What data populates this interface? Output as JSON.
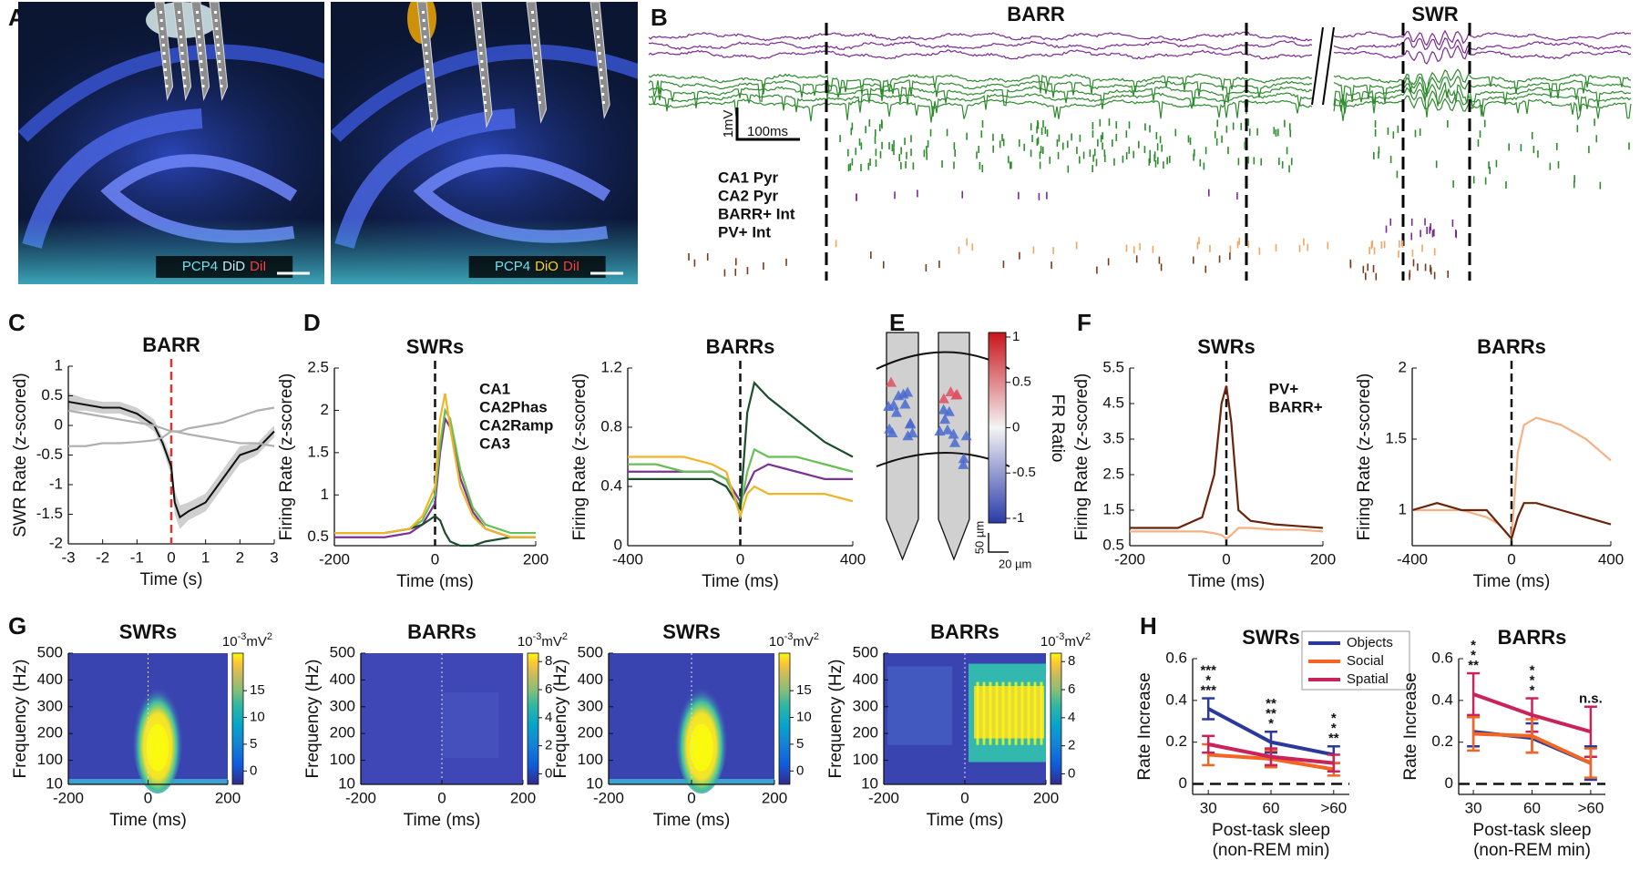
{
  "panel_labels": [
    "A",
    "B",
    "C",
    "D",
    "E",
    "F",
    "G",
    "H"
  ],
  "panel_A": {
    "stains": [
      [
        "PCP4",
        "DiD",
        "DiI"
      ],
      [
        "PCP4",
        "DiO",
        "DiI"
      ]
    ],
    "stain_colors": [
      [
        "#6fe0f0",
        "#bfeef5",
        "#ff3b3b"
      ],
      [
        "#6fe0f0",
        "#ffd21f",
        "#ff3b3b"
      ]
    ]
  },
  "panel_B": {
    "titles": [
      "BARR",
      "SWR"
    ],
    "scale_v": "1mV",
    "scale_t": "100ms",
    "cell_types": [
      "CA1 Pyr",
      "CA2 Pyr",
      "BARR+ Int",
      "PV+ Int"
    ],
    "cell_type_colors": [
      "#7b2a91",
      "#2e8b2e",
      "#f4a460",
      "#7b3a1a"
    ]
  },
  "panel_E": {
    "colorbar_label": "FR Ratio",
    "colorbar_ticks": [
      1,
      0.5,
      0,
      -0.5,
      -1
    ],
    "clim": [
      -1.05,
      1.05
    ],
    "scale_y": "50 µm",
    "scale_x": "20 µm"
  },
  "chart_data": [
    {
      "type": "line",
      "title": "BARR",
      "xlabel": "Time (s)",
      "ylabel": "SWR Rate (z-scored)",
      "x": [
        -3,
        -2.5,
        -2,
        -1.5,
        -1,
        -0.5,
        -0.25,
        0,
        0.1,
        0.25,
        0.5,
        1,
        1.5,
        2,
        2.5,
        3
      ],
      "xlim": [
        -3,
        3
      ],
      "ylim": [
        -2,
        1
      ],
      "xticks": [
        -3,
        -2,
        -1,
        0,
        1,
        2,
        3
      ],
      "yticks": [
        -2,
        -1.5,
        -1,
        -0.5,
        0,
        0.5,
        1
      ],
      "vline": 0,
      "vline_color": "#e8302a",
      "series": [
        {
          "color": "#111111",
          "values": [
            0.4,
            0.35,
            0.3,
            0.3,
            0.2,
            0,
            -0.3,
            -0.7,
            -1.3,
            -1.55,
            -1.45,
            -1.3,
            -0.9,
            -0.5,
            -0.4,
            -0.1
          ],
          "band": [
            0.15,
            0.1,
            0.1,
            0.1,
            0.1,
            0.1,
            0.1,
            0.15,
            0.2,
            0.2,
            0.15,
            0.15,
            0.15,
            0.15,
            0.1,
            0.1
          ]
        },
        {
          "color": "#b0b0b0",
          "values": [
            0.25,
            0.2,
            0.15,
            0.1,
            0.05,
            0,
            -0.05,
            -0.1,
            -0.1,
            -0.1,
            -0.05,
            0,
            0.05,
            0.15,
            0.25,
            0.3
          ]
        },
        {
          "color": "#b0b0b0",
          "values": [
            -0.35,
            -0.35,
            -0.3,
            -0.3,
            -0.28,
            -0.25,
            -0.2,
            -0.1,
            -0.1,
            -0.12,
            -0.15,
            -0.2,
            -0.25,
            -0.3,
            -0.3,
            -0.35
          ]
        }
      ]
    },
    {
      "type": "line",
      "title": "SWRs",
      "xlabel": "Time (ms)",
      "ylabel": "Firing Rate (z-scored)",
      "x": [
        -200,
        -150,
        -100,
        -50,
        -25,
        0,
        10,
        20,
        30,
        50,
        75,
        100,
        150,
        200
      ],
      "xlim": [
        -200,
        200
      ],
      "ylim": [
        0.4,
        2.5
      ],
      "xticks": [
        -200,
        0,
        200
      ],
      "yticks": [
        0.5,
        1,
        1.5,
        2,
        2.5
      ],
      "vline": 0,
      "vline_color": "#111111",
      "legend": "upper right",
      "series": [
        {
          "name": "CA1",
          "color": "#7b3294",
          "values": [
            0.5,
            0.5,
            0.5,
            0.55,
            0.65,
            0.9,
            1.5,
            1.9,
            1.8,
            1.2,
            0.8,
            0.6,
            0.5,
            0.5
          ]
        },
        {
          "name": "CA2Phas",
          "color": "#66c055",
          "values": [
            0.55,
            0.55,
            0.55,
            0.6,
            0.7,
            1.0,
            1.6,
            2.0,
            1.9,
            1.3,
            0.85,
            0.65,
            0.55,
            0.55
          ]
        },
        {
          "name": "CA2Ramp",
          "color": "#1d4d2f",
          "values": [
            0.55,
            0.55,
            0.55,
            0.6,
            0.65,
            0.75,
            0.7,
            0.55,
            0.45,
            0.4,
            0.4,
            0.45,
            0.5,
            0.5
          ]
        },
        {
          "name": "CA3",
          "color": "#f0b429",
          "values": [
            0.55,
            0.55,
            0.55,
            0.6,
            0.75,
            1.1,
            1.9,
            2.2,
            1.8,
            1.1,
            0.75,
            0.6,
            0.5,
            0.5
          ]
        }
      ]
    },
    {
      "type": "line",
      "title": "BARRs",
      "xlabel": "Time (ms)",
      "ylabel": "Firing Rate (z-scored)",
      "x": [
        -400,
        -300,
        -200,
        -100,
        -50,
        0,
        25,
        50,
        100,
        200,
        300,
        400
      ],
      "xlim": [
        -400,
        400
      ],
      "ylim": [
        0,
        1.2
      ],
      "xticks": [
        -400,
        0,
        400
      ],
      "yticks": [
        0,
        0.4,
        0.8,
        1.2
      ],
      "vline": 0,
      "vline_color": "#111111",
      "series": [
        {
          "color": "#7b3294",
          "values": [
            0.5,
            0.5,
            0.5,
            0.5,
            0.45,
            0.3,
            0.4,
            0.5,
            0.55,
            0.5,
            0.45,
            0.45
          ]
        },
        {
          "color": "#66c055",
          "values": [
            0.55,
            0.55,
            0.5,
            0.5,
            0.45,
            0.25,
            0.5,
            0.65,
            0.6,
            0.6,
            0.55,
            0.5
          ]
        },
        {
          "color": "#1d4d2f",
          "values": [
            0.45,
            0.45,
            0.45,
            0.45,
            0.4,
            0.25,
            0.9,
            1.1,
            1.0,
            0.85,
            0.7,
            0.6
          ]
        },
        {
          "color": "#f0b429",
          "values": [
            0.6,
            0.6,
            0.6,
            0.55,
            0.5,
            0.2,
            0.35,
            0.4,
            0.35,
            0.35,
            0.35,
            0.3
          ]
        }
      ]
    },
    {
      "type": "line",
      "title": "SWRs",
      "xlabel": "Time (ms)",
      "ylabel": "Firing Rate (z-scored)",
      "x": [
        -200,
        -150,
        -100,
        -50,
        -25,
        -10,
        0,
        10,
        25,
        50,
        100,
        150,
        200
      ],
      "xlim": [
        -200,
        200
      ],
      "ylim": [
        0.5,
        5.5
      ],
      "xticks": [
        -200,
        0,
        200
      ],
      "yticks": [
        0.5,
        1.5,
        2.5,
        3.5,
        4.5,
        5.5
      ],
      "vline": 0,
      "vline_color": "#111111",
      "legend": "upper right",
      "series": [
        {
          "name": "PV+",
          "color": "#6b240c",
          "values": [
            1.0,
            1.0,
            1.0,
            1.3,
            2.5,
            4.5,
            5.0,
            4.0,
            1.5,
            1.2,
            1.1,
            1.05,
            1.0
          ]
        },
        {
          "name": "BARR+",
          "color": "#f4b183",
          "values": [
            0.9,
            0.9,
            0.9,
            0.9,
            0.85,
            0.8,
            0.7,
            0.8,
            1.0,
            1.0,
            0.95,
            0.95,
            0.9
          ]
        }
      ]
    },
    {
      "type": "line",
      "title": "BARRs",
      "xlabel": "Time (ms)",
      "ylabel": "Firing Rate (z-scored)",
      "x": [
        -400,
        -300,
        -200,
        -100,
        -50,
        0,
        25,
        50,
        100,
        200,
        300,
        400
      ],
      "xlim": [
        -400,
        400
      ],
      "ylim": [
        0.75,
        2
      ],
      "xticks": [
        -400,
        0,
        400
      ],
      "yticks": [
        1,
        1.5,
        2
      ],
      "vline": 0,
      "vline_color": "#111111",
      "series": [
        {
          "color": "#f4b183",
          "values": [
            1.0,
            1.0,
            1.0,
            0.95,
            0.9,
            0.8,
            1.4,
            1.6,
            1.65,
            1.6,
            1.5,
            1.35
          ]
        },
        {
          "color": "#6b240c",
          "values": [
            1.0,
            1.05,
            1.0,
            1.0,
            0.9,
            0.8,
            0.95,
            1.05,
            1.05,
            1.0,
            0.95,
            0.9
          ]
        }
      ]
    },
    {
      "type": "heatmap",
      "title": "SWRs",
      "xlabel": "Time (ms)",
      "ylabel": "Frequency (Hz)",
      "xlim": [
        -200,
        200
      ],
      "ylim": [
        10,
        500
      ],
      "xticks": [
        -200,
        0,
        200
      ],
      "yticks": [
        10,
        100,
        200,
        300,
        400,
        500
      ],
      "colorbar_unit": [
        "10",
        "-3",
        "mV",
        "2"
      ],
      "clim": [
        -2.5,
        22
      ],
      "cticks": [
        0,
        5,
        10,
        15
      ]
    },
    {
      "type": "heatmap",
      "title": "BARRs",
      "xlabel": "Time (ms)",
      "ylabel": "Frequency (Hz)",
      "xlim": [
        -200,
        200
      ],
      "ylim": [
        10,
        500
      ],
      "xticks": [
        -200,
        0,
        200
      ],
      "yticks": [
        10,
        100,
        200,
        300,
        400,
        500
      ],
      "colorbar_unit": [
        "10",
        "-3",
        "mV",
        "2"
      ],
      "clim": [
        -0.75,
        8.6
      ],
      "cticks": [
        0,
        2,
        4,
        6,
        8
      ]
    },
    {
      "type": "heatmap",
      "title": "SWRs",
      "xlabel": "Time (ms)",
      "ylabel": "Frequency (Hz)",
      "xlim": [
        -200,
        200
      ],
      "ylim": [
        10,
        500
      ],
      "xticks": [
        -200,
        0,
        200
      ],
      "yticks": [
        10,
        100,
        200,
        300,
        400,
        500
      ],
      "colorbar_unit": [
        "10",
        "-3",
        "mV",
        "2"
      ],
      "clim": [
        -2.5,
        22
      ],
      "cticks": [
        0,
        5,
        10,
        15
      ]
    },
    {
      "type": "heatmap",
      "title": "BARRs",
      "xlabel": "Time (ms)",
      "ylabel": "Frequency (Hz)",
      "xlim": [
        -200,
        200
      ],
      "ylim": [
        10,
        500
      ],
      "xticks": [
        -200,
        0,
        200
      ],
      "yticks": [
        10,
        100,
        200,
        300,
        400,
        500
      ],
      "colorbar_unit": [
        "10",
        "-3",
        "mV",
        "2"
      ],
      "clim": [
        -0.75,
        8.6
      ],
      "cticks": [
        0,
        2,
        4,
        6,
        8
      ]
    },
    {
      "type": "errorbar",
      "title": "SWRs",
      "xlabel": "Post-task sleep",
      "xlabel2": "(non-REM min)",
      "ylabel": "Rate Increase",
      "categories": [
        "30",
        "60",
        ">60"
      ],
      "ylim": [
        -0.05,
        0.6
      ],
      "yticks": [
        0,
        0.2,
        0.4,
        0.6
      ],
      "hline": 0,
      "legend": "upper right",
      "series": [
        {
          "name": "Objects",
          "color": "#2b3a9a",
          "values": [
            0.36,
            0.2,
            0.14
          ],
          "error": [
            0.05,
            0.05,
            0.04
          ]
        },
        {
          "name": "Social",
          "color": "#f26522",
          "values": [
            0.14,
            0.12,
            0.07
          ],
          "error": [
            0.05,
            0.04,
            0.03
          ]
        },
        {
          "name": "Spatial",
          "color": "#c8235a",
          "values": [
            0.19,
            0.13,
            0.1
          ],
          "error": [
            0.04,
            0.04,
            0.04
          ]
        }
      ],
      "significance": [
        [
          "***",
          "*",
          "***"
        ],
        [
          "**",
          "**",
          "*"
        ],
        [
          "*",
          "*",
          "**"
        ]
      ],
      "significance_colors": [
        "#c8235a",
        "#c8235a",
        "#c8235a"
      ]
    },
    {
      "type": "errorbar",
      "title": "BARRs",
      "xlabel": "Post-task sleep",
      "xlabel2": "(non-REM min)",
      "ylabel": "Rate Increase",
      "categories": [
        "30",
        "60",
        ">60"
      ],
      "ylim": [
        -0.05,
        0.6
      ],
      "yticks": [
        0,
        0.2,
        0.4,
        0.6
      ],
      "hline": 0,
      "series": [
        {
          "color": "#c8235a",
          "values": [
            0.43,
            0.33,
            0.25
          ],
          "error": [
            0.1,
            0.08,
            0.12
          ]
        },
        {
          "color": "#2b3a9a",
          "values": [
            0.25,
            0.22,
            0.1
          ],
          "error": [
            0.07,
            0.07,
            0.08
          ]
        },
        {
          "color": "#f26522",
          "values": [
            0.24,
            0.23,
            0.1
          ],
          "error": [
            0.08,
            0.08,
            0.07
          ]
        }
      ],
      "significance": [
        [
          "*",
          "*",
          "**"
        ],
        [
          "*",
          "*",
          "*"
        ],
        [
          "n.s."
        ]
      ],
      "significance_colors": [
        "#c8235a",
        "#c8235a",
        "#333333"
      ]
    }
  ]
}
